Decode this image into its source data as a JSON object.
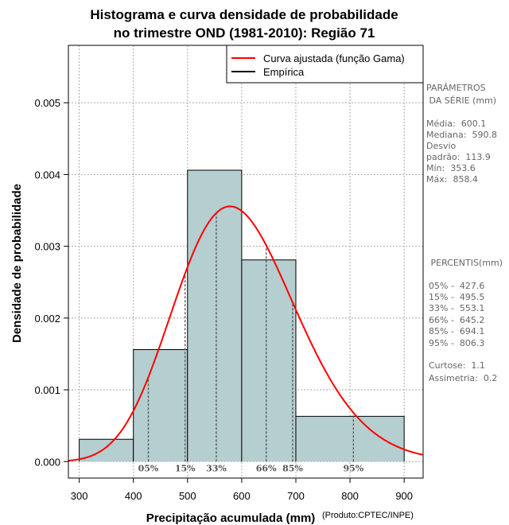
{
  "chart_data": {
    "type": "bar",
    "title": [
      "Histograma e curva densidade de probabilidade",
      "no trimestre OND (1981-2010): Região 71"
    ],
    "xlabel": "Precipitação acumulada (mm)",
    "ylabel": "Densidade de probabilidade",
    "credit": "(Produto:CPTEC/INPE)",
    "xlim": [
      280,
      935
    ],
    "ylim": [
      -0.00023,
      0.0058
    ],
    "xticks": [
      300,
      400,
      500,
      600,
      700,
      800,
      900
    ],
    "yticks": [
      0.0,
      0.001,
      0.002,
      0.003,
      0.004,
      0.005
    ],
    "ytick_labels": [
      "0.000",
      "0.001",
      "0.002",
      "0.003",
      "0.004",
      "0.005"
    ],
    "bins": [
      {
        "x0": 300,
        "x1": 400,
        "density": 0.00031
      },
      {
        "x0": 400,
        "x1": 500,
        "density": 0.00156
      },
      {
        "x0": 500,
        "x1": 600,
        "density": 0.00406
      },
      {
        "x0": 600,
        "x1": 700,
        "density": 0.00281
      },
      {
        "x0": 700,
        "x1": 900,
        "density": 0.00063
      }
    ],
    "gamma_fit": {
      "name": "Curva ajustada (função Gama)",
      "mean": 600.1,
      "sd": 113.9,
      "color": "#ff0000"
    },
    "empirical": {
      "name": "Empírica",
      "color": "#000000"
    },
    "percentiles": [
      {
        "label": "05%",
        "value": 427.6
      },
      {
        "label": "15%",
        "value": 495.5
      },
      {
        "label": "33%",
        "value": 553.1
      },
      {
        "label": "66%",
        "value": 645.2
      },
      {
        "label": "85%",
        "value": 694.1
      },
      {
        "label": "95%",
        "value": 806.3
      }
    ],
    "bar_color": "#b5cecf",
    "grid": true,
    "legend_position": "top-right"
  },
  "side_panel": {
    "params_title": [
      "PARÂMETROS",
      " DA SÉRIE (mm)"
    ],
    "params": [
      "Média:  600.1",
      "Mediana:  590.8",
      "Desvio",
      "padrão:  113.9",
      "Mín:  353.6",
      "Máx:  858.4"
    ],
    "percentis_title": " PERCENTIS(mm)",
    "percentis": [
      "05% -  427.6",
      "15% -  495.5",
      "33% -  553.1",
      "66% -  645.2",
      "85% -  694.1",
      "95% -  806.3"
    ],
    "stats": [
      "Curtose:  1.1",
      "Assimetria:  0.2"
    ]
  }
}
